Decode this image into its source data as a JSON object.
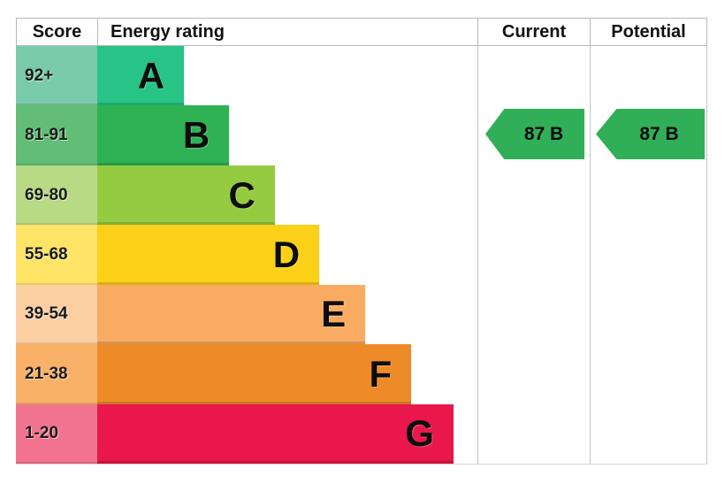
{
  "header": {
    "score": "Score",
    "energy_rating": "Energy rating",
    "current": "Current",
    "potential": "Potential"
  },
  "bands": [
    {
      "letter": "A",
      "score": "92+",
      "color": "#27c486",
      "score_bg": "#79cba9",
      "width": "22.8%"
    },
    {
      "letter": "B",
      "score": "81-91",
      "color": "#2eb254",
      "score_bg": "#62bd76",
      "width": "34.7%"
    },
    {
      "letter": "C",
      "score": "69-80",
      "color": "#95cb41",
      "score_bg": "#b8da85",
      "width": "46.7%"
    },
    {
      "letter": "D",
      "score": "55-68",
      "color": "#fdd019",
      "score_bg": "#ffe467",
      "width": "58.4%"
    },
    {
      "letter": "E",
      "score": "39-54",
      "color": "#f9ab61",
      "score_bg": "#fccfa3",
      "width": "70.5%"
    },
    {
      "letter": "F",
      "score": "21-38",
      "color": "#ee8b29",
      "score_bg": "#f8b166",
      "width": "82.6%"
    },
    {
      "letter": "G",
      "score": "1-20",
      "color": "#e9174b",
      "score_bg": "#f2738f",
      "width": "93.7%"
    }
  ],
  "current": {
    "label": "87 B",
    "color": "#31ae58"
  },
  "potential": {
    "label": "87 B",
    "color": "#31ae58"
  },
  "chart_data": {
    "type": "bar",
    "title": "Energy rating",
    "orientation": "horizontal",
    "categories": [
      "A",
      "B",
      "C",
      "D",
      "E",
      "F",
      "G"
    ],
    "score_ranges": [
      "92+",
      "81-91",
      "69-80",
      "55-68",
      "39-54",
      "21-38",
      "1-20"
    ],
    "bar_relative_lengths_pct": [
      22.8,
      34.7,
      46.7,
      58.4,
      70.5,
      82.6,
      93.7
    ],
    "band_colors": [
      "#27c486",
      "#2eb254",
      "#95cb41",
      "#fdd019",
      "#f9ab61",
      "#ee8b29",
      "#e9174b"
    ],
    "annotations": [
      {
        "column": "Current",
        "value": 87,
        "band": "B"
      },
      {
        "column": "Potential",
        "value": 87,
        "band": "B"
      }
    ],
    "grid": false,
    "legend_position": "none"
  }
}
